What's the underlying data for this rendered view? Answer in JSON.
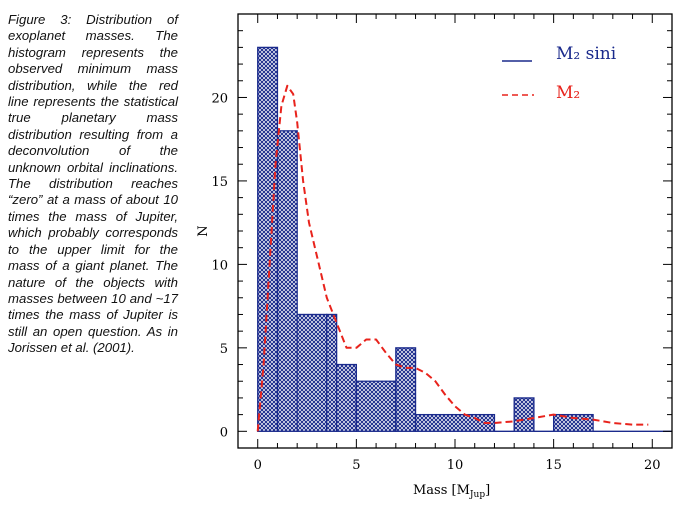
{
  "caption": {
    "text": "Figure 3: Distribution of exoplanet masses. The histogram represents the observed minimum mass distribution, while the red line represents the statistical true planetary mass distribution resulting from a deconvolution of the unknown orbital inclinations. The distribution reaches “zero” at a mass of about 10 times the mass of Jupiter, which probably corresponds to the upper limit for the mass of a giant planet. The nature of the objects with masses between 10 and ~17 times the mass of Jupiter is still an open question. As in Jorissen et al. (2001)."
  },
  "chart_data": {
    "type": "bar",
    "xlabel": "Mass [M",
    "xlabel_sub": "Jup",
    "xlabel_end": "]",
    "ylabel": "N",
    "xlim": [
      -1,
      21
    ],
    "ylim": [
      -1,
      25
    ],
    "xticks": [
      0,
      5,
      10,
      15,
      20
    ],
    "yticks": [
      0,
      5,
      10,
      15,
      20
    ],
    "grid": false,
    "legend_position": "top-right",
    "histogram": {
      "name": "M₂ sini",
      "color": "#1a2a8c",
      "bins": [
        {
          "x0": 0,
          "x1": 1,
          "count": 23
        },
        {
          "x0": 1,
          "x1": 2,
          "count": 18
        },
        {
          "x0": 2,
          "x1": 3.5,
          "count": 7
        },
        {
          "x0": 3.5,
          "x1": 4,
          "count": 7
        },
        {
          "x0": 4,
          "x1": 5,
          "count": 4
        },
        {
          "x0": 5,
          "x1": 7,
          "count": 3
        },
        {
          "x0": 7,
          "x1": 8,
          "count": 5
        },
        {
          "x0": 8,
          "x1": 12,
          "count": 1
        },
        {
          "x0": 12,
          "x1": 13,
          "count": 0
        },
        {
          "x0": 13,
          "x1": 14,
          "count": 2
        },
        {
          "x0": 14,
          "x1": 15,
          "count": 0
        },
        {
          "x0": 15,
          "x1": 17,
          "count": 1
        },
        {
          "x0": 17,
          "x1": 21,
          "count": 0
        }
      ]
    },
    "true_mass_curve": {
      "name": "M₂",
      "color": "#e8231c",
      "x": [
        0,
        0.3,
        0.6,
        0.9,
        1.2,
        1.5,
        1.8,
        2.0,
        2.3,
        2.6,
        3.0,
        3.5,
        4.0,
        4.5,
        5.0,
        5.5,
        6.0,
        6.5,
        7.0,
        7.5,
        8.0,
        8.5,
        9.0,
        9.5,
        10.0,
        10.5,
        11.0,
        11.5,
        12.0,
        13.0,
        14.0,
        15.0,
        16.0,
        17.0,
        18.0,
        19.0,
        19.8
      ],
      "y": [
        0,
        4,
        10,
        16,
        19.5,
        20.7,
        20.2,
        18.5,
        15,
        12.5,
        10.5,
        8,
        6.5,
        5,
        5,
        5.5,
        5.5,
        4.7,
        4,
        3.8,
        3.8,
        3.5,
        3,
        2.2,
        1.5,
        1.0,
        0.8,
        0.5,
        0.5,
        0.6,
        0.8,
        1.0,
        0.8,
        0.7,
        0.5,
        0.4,
        0.4
      ]
    }
  }
}
